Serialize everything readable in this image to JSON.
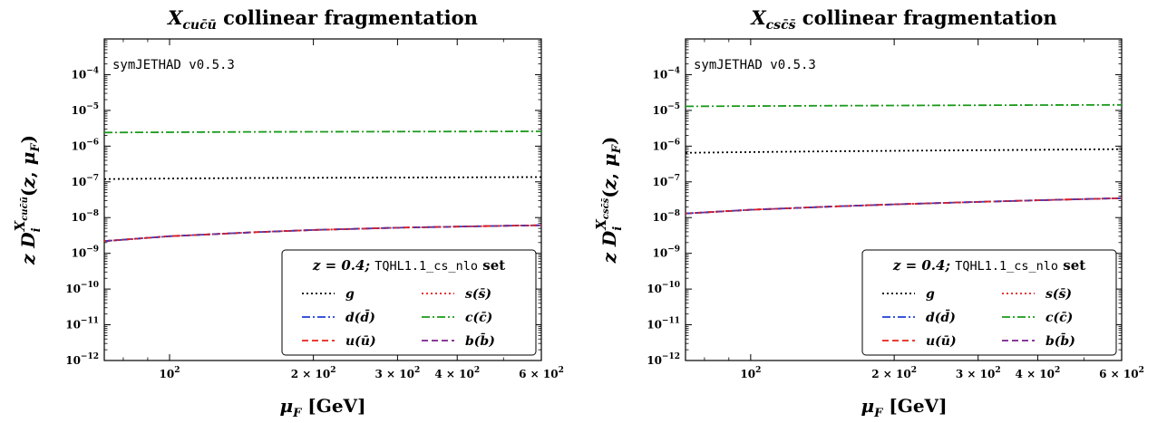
{
  "chart_data": [
    {
      "type": "line",
      "title": "X_{cuc̄ū} collinear fragmentation",
      "title_main": "X",
      "title_sub": "cuc̄ū",
      "title_rest": " collinear fragmentation",
      "xlabel": "μ_F [GeV]",
      "ylabel": "z D_i^{X_{cuc̄ū}}(z, μ_F)",
      "ylabel_sup": "cuc̄ū",
      "xscale": "log",
      "yscale": "log",
      "xlim": [
        73,
        600
      ],
      "ylim": [
        1e-12,
        0.001
      ],
      "x_ticks": [
        {
          "value": 100,
          "label": "10",
          "exp": "2"
        },
        {
          "value": 200,
          "label": "2 × 10",
          "exp": "2"
        },
        {
          "value": 300,
          "label": "3 × 10",
          "exp": "2"
        },
        {
          "value": 400,
          "label": "4 × 10",
          "exp": "2"
        },
        {
          "value": 600,
          "label": "6 × 10",
          "exp": "2"
        }
      ],
      "y_ticks": [
        {
          "value": 1e-12,
          "label": "10",
          "exp": "−12"
        },
        {
          "value": 1e-11,
          "label": "10",
          "exp": "−11"
        },
        {
          "value": 1e-10,
          "label": "10",
          "exp": "−10"
        },
        {
          "value": 1e-09,
          "label": "10",
          "exp": "−9"
        },
        {
          "value": 1e-08,
          "label": "10",
          "exp": "−8"
        },
        {
          "value": 1e-07,
          "label": "10",
          "exp": "−7"
        },
        {
          "value": 1e-06,
          "label": "10",
          "exp": "−6"
        },
        {
          "value": 1e-05,
          "label": "10",
          "exp": "−5"
        },
        {
          "value": 0.0001,
          "label": "10",
          "exp": "−4"
        }
      ],
      "annotation": "symJETHAD v0.5.3",
      "legend": {
        "title_z": "z = 0.4;",
        "title_set": "TQHL1.1_cs_nlo",
        "title_suffix": " set",
        "placement": "bottom-right"
      },
      "x": [
        73,
        100,
        150,
        200,
        300,
        400,
        500,
        600
      ],
      "series": [
        {
          "name": "g",
          "color": "#000000",
          "style": "dotted",
          "values": [
            1.2e-07,
            1.24e-07,
            1.28e-07,
            1.3e-07,
            1.32e-07,
            1.34e-07,
            1.35e-07,
            1.36e-07
          ]
        },
        {
          "name": "s(s̄)",
          "color": "#e41a1c",
          "style": "dotted",
          "values": [
            2.2e-09,
            3e-09,
            3.9e-09,
            4.5e-09,
            5.2e-09,
            5.6e-09,
            5.9e-09,
            6.1e-09
          ]
        },
        {
          "name": "d(d̄)",
          "color": "#1f3fd6",
          "style": "dashdot",
          "values": [
            2.2e-09,
            3e-09,
            3.9e-09,
            4.5e-09,
            5.2e-09,
            5.6e-09,
            5.9e-09,
            6.1e-09
          ]
        },
        {
          "name": "c(c̄)",
          "color": "#1a9a1a",
          "style": "dashdot",
          "values": [
            2.4e-06,
            2.45e-06,
            2.5e-06,
            2.52e-06,
            2.55e-06,
            2.57e-06,
            2.58e-06,
            2.6e-06
          ]
        },
        {
          "name": "u(ū)",
          "color": "#e8201a",
          "style": "dashed",
          "values": [
            2.2e-09,
            3e-09,
            3.9e-09,
            4.5e-09,
            5.2e-09,
            5.6e-09,
            5.9e-09,
            6.1e-09
          ]
        },
        {
          "name": "b(b̄)",
          "color": "#7a1f8c",
          "style": "dashed",
          "values": [
            2.2e-09,
            3e-09,
            3.9e-09,
            4.5e-09,
            5.2e-09,
            5.6e-09,
            5.9e-09,
            6.1e-09
          ]
        }
      ]
    },
    {
      "type": "line",
      "title": "X_{csc̄s̄} collinear fragmentation",
      "title_main": "X",
      "title_sub": "csc̄s̄",
      "title_rest": " collinear fragmentation",
      "xlabel": "μ_F [GeV]",
      "ylabel": "z D_i^{X_{csc̄s̄}}(z, μ_F)",
      "ylabel_sup": "csc̄s̄",
      "xscale": "log",
      "yscale": "log",
      "xlim": [
        73,
        600
      ],
      "ylim": [
        1e-12,
        0.001
      ],
      "x_ticks": [
        {
          "value": 100,
          "label": "10",
          "exp": "2"
        },
        {
          "value": 200,
          "label": "2 × 10",
          "exp": "2"
        },
        {
          "value": 300,
          "label": "3 × 10",
          "exp": "2"
        },
        {
          "value": 400,
          "label": "4 × 10",
          "exp": "2"
        },
        {
          "value": 600,
          "label": "6 × 10",
          "exp": "2"
        }
      ],
      "y_ticks": [
        {
          "value": 1e-12,
          "label": "10",
          "exp": "−12"
        },
        {
          "value": 1e-11,
          "label": "10",
          "exp": "−11"
        },
        {
          "value": 1e-10,
          "label": "10",
          "exp": "−10"
        },
        {
          "value": 1e-09,
          "label": "10",
          "exp": "−9"
        },
        {
          "value": 1e-08,
          "label": "10",
          "exp": "−8"
        },
        {
          "value": 1e-07,
          "label": "10",
          "exp": "−7"
        },
        {
          "value": 1e-06,
          "label": "10",
          "exp": "−6"
        },
        {
          "value": 1e-05,
          "label": "10",
          "exp": "−5"
        },
        {
          "value": 0.0001,
          "label": "10",
          "exp": "−4"
        }
      ],
      "annotation": "symJETHAD v0.5.3",
      "legend": {
        "title_z": "z = 0.4;",
        "title_set": "TQHL1.1_cs_nlo",
        "title_suffix": " set",
        "placement": "bottom-right"
      },
      "x": [
        73,
        100,
        150,
        200,
        300,
        400,
        500,
        600
      ],
      "series": [
        {
          "name": "g",
          "color": "#000000",
          "style": "dotted",
          "values": [
            6.5e-07,
            6.8e-07,
            7.2e-07,
            7.4e-07,
            7.7e-07,
            7.9e-07,
            8.1e-07,
            8.2e-07
          ]
        },
        {
          "name": "s(s̄)",
          "color": "#e41a1c",
          "style": "dotted",
          "values": [
            1.3e-08,
            1.65e-08,
            2.05e-08,
            2.35e-08,
            2.75e-08,
            3.05e-08,
            3.3e-08,
            3.5e-08
          ]
        },
        {
          "name": "d(d̄)",
          "color": "#1f3fd6",
          "style": "dashdot",
          "values": [
            1.3e-08,
            1.65e-08,
            2.05e-08,
            2.35e-08,
            2.75e-08,
            3.05e-08,
            3.3e-08,
            3.5e-08
          ]
        },
        {
          "name": "c(c̄)",
          "color": "#1a9a1a",
          "style": "dashdot",
          "values": [
            1.3e-05,
            1.32e-05,
            1.35e-05,
            1.37e-05,
            1.39e-05,
            1.41e-05,
            1.42e-05,
            1.43e-05
          ]
        },
        {
          "name": "u(ū)",
          "color": "#e8201a",
          "style": "dashed",
          "values": [
            1.3e-08,
            1.65e-08,
            2.05e-08,
            2.35e-08,
            2.75e-08,
            3.05e-08,
            3.3e-08,
            3.5e-08
          ]
        },
        {
          "name": "b(b̄)",
          "color": "#7a1f8c",
          "style": "dashed",
          "values": [
            1.3e-08,
            1.65e-08,
            2.05e-08,
            2.35e-08,
            2.75e-08,
            3.05e-08,
            3.3e-08,
            3.5e-08
          ]
        }
      ]
    }
  ]
}
